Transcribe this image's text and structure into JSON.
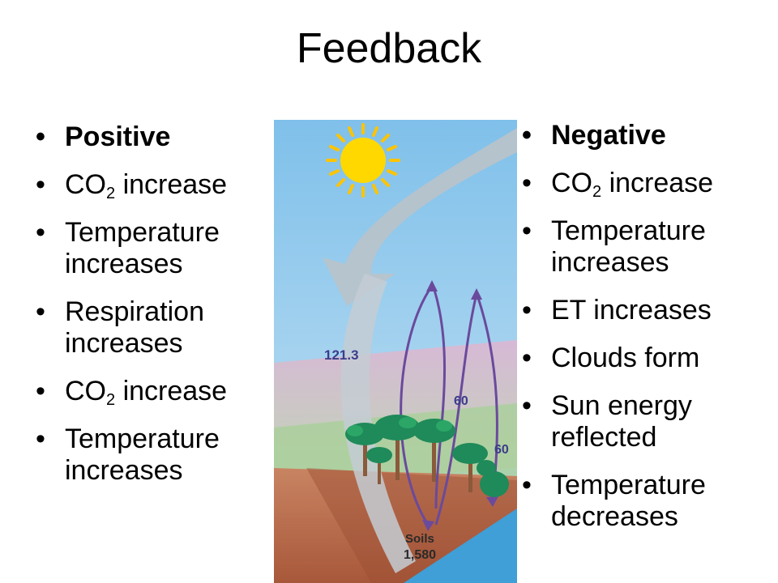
{
  "slide": {
    "title": "Feedback"
  },
  "positive": {
    "items": [
      {
        "text": "Positive",
        "bold": true
      },
      {
        "text": "CO",
        "sub": "2",
        "after": " increase"
      },
      {
        "text": "Temperature increases"
      },
      {
        "text": "Respiration increases"
      },
      {
        "text": "CO",
        "sub": "2",
        "after": " increase"
      },
      {
        "text": "Temperature increases"
      }
    ]
  },
  "negative": {
    "items": [
      {
        "text": "Negative",
        "bold": true
      },
      {
        "text": "CO",
        "sub": "2",
        "after": " increase"
      },
      {
        "text": "Temperature increases"
      },
      {
        "text": "ET increases"
      },
      {
        "text": "Clouds form"
      },
      {
        "text": "Sun energy reflected"
      },
      {
        "text": "Temperature decreases"
      }
    ]
  },
  "illustration": {
    "labels": {
      "flux_in": "121.3",
      "flux_out_1": "60",
      "flux_out_2": "60",
      "soils_name": "Soils",
      "soils_value": "1,580"
    },
    "colors": {
      "sky": "#8ec8ec",
      "sun": "#ffd800",
      "haze": "#cfa8cc",
      "soil": "#c77a56",
      "arrow_gray": "#b8c4cc",
      "arrow_purple": "#6a4a9c"
    }
  }
}
